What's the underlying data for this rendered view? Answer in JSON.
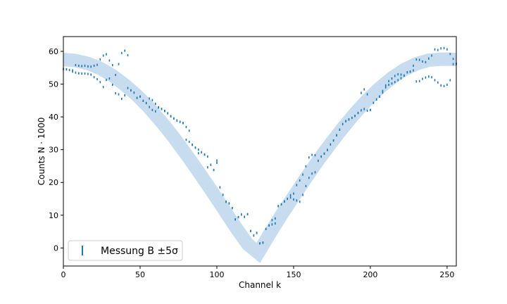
{
  "chart_data": {
    "type": "scatter",
    "title": "",
    "xlabel": "Channel k",
    "ylabel": "Counts N · 1000",
    "xlim": [
      0,
      256
    ],
    "ylim": [
      -5.5,
      64.5
    ],
    "xticks": [
      0,
      50,
      100,
      150,
      200,
      250
    ],
    "yticks": [
      0,
      10,
      20,
      30,
      40,
      50,
      60
    ],
    "grid": false,
    "legend_location": "lower-left",
    "legend_label": "Messung B ±5σ",
    "colors": {
      "points": "#1f77b4",
      "band": "#c7dcee"
    },
    "model_band": {
      "x": [
        0,
        8,
        16,
        24,
        32,
        40,
        48,
        56,
        64,
        72,
        80,
        88,
        96,
        104,
        112,
        120,
        127,
        134,
        142,
        150,
        158,
        166,
        174,
        182,
        190,
        198,
        206,
        214,
        222,
        230,
        238,
        246,
        252,
        256
      ],
      "y": [
        57.5,
        57.2,
        56.3,
        54.8,
        52.6,
        49.8,
        46.5,
        42.7,
        38.4,
        33.7,
        28.6,
        23.3,
        17.8,
        12.2,
        6.5,
        1.2,
        -1.5,
        4.0,
        10.0,
        15.7,
        21.3,
        26.7,
        31.8,
        36.6,
        41.1,
        45.2,
        48.8,
        51.9,
        54.4,
        56.2,
        57.3,
        57.6,
        57.6,
        57.5
      ]
    },
    "series": [
      {
        "x": [
          0,
          2,
          4,
          6,
          8,
          10,
          12,
          14,
          16,
          18,
          20,
          22,
          24,
          26,
          28,
          30,
          32,
          34,
          36,
          38,
          40,
          42,
          44,
          46,
          48,
          50,
          52,
          54,
          56,
          58,
          60,
          62,
          64,
          66,
          68,
          70,
          72,
          74,
          76,
          78,
          80,
          82,
          84,
          86,
          88,
          90,
          92,
          94,
          96,
          98,
          100,
          102,
          104,
          106,
          108,
          110,
          112,
          114,
          116,
          118,
          120,
          122,
          124,
          126,
          128,
          130,
          132,
          134,
          136,
          138,
          140,
          142,
          144,
          146,
          148,
          150,
          152,
          154,
          156,
          158,
          160,
          162,
          164,
          166,
          168,
          170,
          172,
          174,
          176,
          178,
          180,
          182,
          184,
          186,
          188,
          190,
          192,
          194,
          196,
          198,
          200,
          202,
          204,
          206,
          208,
          210,
          212,
          214,
          216,
          218,
          220,
          222,
          224,
          226,
          228,
          230,
          232,
          234,
          236,
          238,
          240,
          242,
          244,
          246,
          248,
          250,
          252,
          254,
          256
        ],
        "y": [
          54.6,
          54.5,
          54.3,
          54.2,
          55.8,
          55.6,
          55.5,
          55.6,
          55.4,
          55.3,
          55.6,
          55.9,
          57.5,
          58.7,
          59.1,
          57.2,
          55.8,
          52.8,
          56.1,
          59.5,
          60.2,
          58.8,
          48.1,
          47.4,
          45.8,
          46.2,
          44.9,
          44.2,
          45.6,
          45.1,
          44.0,
          42.9,
          42.4,
          41.8,
          41.1,
          40.2,
          39.5,
          38.9,
          38.5,
          38.1,
          36.9,
          35.8,
          31.5,
          30.6,
          30.0,
          29.2,
          28.5,
          27.9,
          25.4,
          23.8,
          26.7,
          18.5,
          16.2,
          14.1,
          13.6,
          12.2,
          8.7,
          9.4,
          10.2,
          9.5,
          10.3,
          5.2,
          3.8,
          4.6,
          1.4,
          1.6,
          5.8,
          6.9,
          8.5,
          9.0,
          12.8,
          13.3,
          14.2,
          15.0,
          16.1,
          16.6,
          19.2,
          20.6,
          22.4,
          24.9,
          27.6,
          28.4,
          28.3,
          26.6,
          27.9,
          28.8,
          29.9,
          31.6,
          32.8,
          34.4,
          36.1,
          37.8,
          38.7,
          39.2,
          39.7,
          40.3,
          41.2,
          47.3,
          48.4,
          46.9,
          42.1,
          44.3,
          45.3,
          46.2,
          47.9,
          49.6,
          50.9,
          51.7,
          52.5,
          53.0,
          52.9,
          52.6,
          53.6,
          53.8,
          55.6,
          57.5,
          57.4,
          56.9,
          56.7,
          57.8,
          58.7,
          60.6,
          60.4,
          60.9,
          61.0,
          60.6,
          59.2,
          57.7,
          56.2
        ],
        "y_alt": [
          54.6,
          54.5,
          54.3,
          53.8,
          53.5,
          53.3,
          53.2,
          53.2,
          53.1,
          52.9,
          52.1,
          51.5,
          50.6,
          49.1,
          51.3,
          51.7,
          49.8,
          47.2,
          46.9,
          45.5,
          46.6,
          48.8,
          48.1,
          47.4,
          45.8,
          46.2,
          44.9,
          44.2,
          43.0,
          42.1,
          41.7,
          42.9,
          42.4,
          41.8,
          41.1,
          40.2,
          39.5,
          38.9,
          38.5,
          38.1,
          33.0,
          32.4,
          31.5,
          30.6,
          28.9,
          29.2,
          28.5,
          24.6,
          25.4,
          23.8,
          26.0,
          18.5,
          16.2,
          14.1,
          13.6,
          12.2,
          8.7,
          9.4,
          10.2,
          9.5,
          10.3,
          5.2,
          3.8,
          4.6,
          1.4,
          1.6,
          5.8,
          6.9,
          7.2,
          7.5,
          12.8,
          13.3,
          14.2,
          15.0,
          15.4,
          14.8,
          14.5,
          14.1,
          16.2,
          18.9,
          21.4,
          22.7,
          23.1,
          26.6,
          27.9,
          28.8,
          29.9,
          31.6,
          32.8,
          34.4,
          36.1,
          37.8,
          38.7,
          39.2,
          39.7,
          40.3,
          41.2,
          42.0,
          42.4,
          41.9,
          42.1,
          44.3,
          45.3,
          46.2,
          47.4,
          49.0,
          49.8,
          50.2,
          50.6,
          51.2,
          51.8,
          52.6,
          53.6,
          53.8,
          54.2,
          50.8,
          50.9,
          51.6,
          52.0,
          52.3,
          52.1,
          51.2,
          50.5,
          49.6,
          49.4,
          49.8,
          51.2,
          56.1,
          56.2
        ]
      }
    ]
  }
}
